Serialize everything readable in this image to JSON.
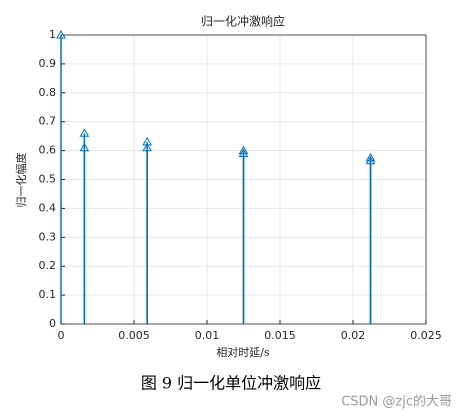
{
  "chart_data": {
    "type": "stem",
    "title": "归一化冲激响应",
    "xlabel": "相对时延/s",
    "ylabel": "归一化幅度",
    "x": [
      0,
      0.0016,
      0.0016,
      0.0059,
      0.0059,
      0.0125,
      0.0125,
      0.0212,
      0.0212
    ],
    "series": [
      {
        "name": "冲激响应",
        "color": "#0072bd",
        "values": [
          1,
          0.66,
          0.61,
          0.63,
          0.61,
          0.6,
          0.59,
          0.575,
          0.565
        ]
      }
    ],
    "xlim": [
      0,
      0.025
    ],
    "xticks": [
      0,
      0.005,
      0.01,
      0.015,
      0.02,
      0.025
    ],
    "ylim": [
      0,
      1
    ],
    "yticks": [
      0,
      0.1,
      0.2,
      0.3,
      0.4,
      0.5,
      0.6,
      0.7,
      0.8,
      0.9,
      1
    ],
    "grid": true
  },
  "caption": "图 9  归一化单位冲激响应",
  "watermark": "CSDN @zjc的大哥"
}
